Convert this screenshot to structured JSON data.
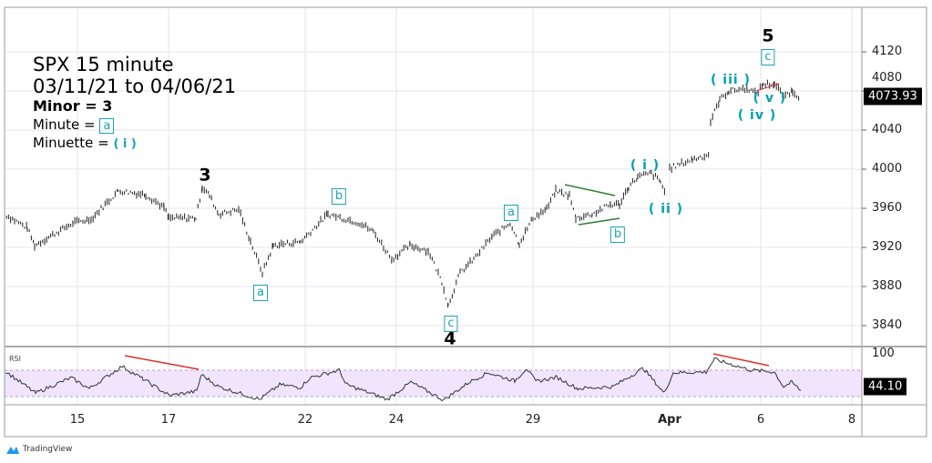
{
  "header": {
    "title": "SPX 15 minute",
    "range": "03/11/21 to 04/06/21",
    "minor": "Minor = 3",
    "minute_label": "Minute =",
    "minute_box": "a",
    "minuette_label": "Minuette   =",
    "minuette_value": "( i )"
  },
  "brand": "TradingView",
  "rsi_label": "RSI",
  "colors": {
    "teal": "#1aa3b3",
    "red": "#d9342b",
    "green": "#2e7d32",
    "band": "#f1e4fd"
  },
  "chart_data": {
    "type": "line",
    "title": "SPX 15 minute",
    "x_unit": "trading session index (0 = Mar 12)",
    "x_ticks": [
      {
        "label": "15",
        "x": 1
      },
      {
        "label": "17",
        "x": 3
      },
      {
        "label": "22",
        "x": 6
      },
      {
        "label": "24",
        "x": 8
      },
      {
        "label": "29",
        "x": 11
      },
      {
        "label": "Apr",
        "x": 14
      },
      {
        "label": "6",
        "x": 16
      },
      {
        "label": "8",
        "x": 18
      }
    ],
    "y_ticks": [
      "4120",
      "4080",
      "4040",
      "4000",
      "3960",
      "3920",
      "3880",
      "3840"
    ],
    "ylim": [
      3815,
      4165
    ],
    "last_price": "4073.93",
    "price": [
      [
        -0.6,
        3954
      ],
      [
        -0.1,
        3940
      ],
      [
        0.06,
        3922
      ],
      [
        0.9,
        3945
      ],
      [
        1.3,
        3949
      ],
      [
        1.9,
        3978
      ],
      [
        2.5,
        3974
      ],
      [
        2.9,
        3961
      ],
      [
        3.0,
        3950
      ],
      [
        3.6,
        3950
      ],
      [
        3.74,
        3982
      ],
      [
        3.9,
        3973
      ],
      [
        4.1,
        3954
      ],
      [
        4.54,
        3959
      ],
      [
        4.8,
        3926
      ],
      [
        5.06,
        3894
      ],
      [
        5.3,
        3922
      ],
      [
        5.9,
        3926
      ],
      [
        6.5,
        3954
      ],
      [
        7.2,
        3945
      ],
      [
        7.5,
        3936
      ],
      [
        7.9,
        3908
      ],
      [
        8.3,
        3922
      ],
      [
        8.7,
        3917
      ],
      [
        9.0,
        3885
      ],
      [
        9.14,
        3861
      ],
      [
        9.4,
        3894
      ],
      [
        9.7,
        3908
      ],
      [
        10.1,
        3931
      ],
      [
        10.5,
        3945
      ],
      [
        10.7,
        3924
      ],
      [
        11.0,
        3950
      ],
      [
        11.3,
        3959
      ],
      [
        11.5,
        3978
      ],
      [
        11.8,
        3973
      ],
      [
        11.94,
        3950
      ],
      [
        12.3,
        3954
      ],
      [
        12.7,
        3964
      ],
      [
        12.9,
        3964
      ],
      [
        13.1,
        3982
      ],
      [
        13.3,
        3992
      ],
      [
        13.6,
        3996
      ],
      [
        13.8,
        3987
      ],
      [
        13.9,
        3976
      ],
      [
        14.0,
        4001
      ],
      [
        14.5,
        4010
      ],
      [
        14.86,
        4015
      ],
      [
        14.9,
        4049
      ],
      [
        15.1,
        4071
      ],
      [
        15.3,
        4080
      ],
      [
        15.7,
        4083
      ],
      [
        15.9,
        4077
      ],
      [
        16.06,
        4087
      ],
      [
        16.3,
        4087
      ],
      [
        16.5,
        4075
      ],
      [
        16.7,
        4080
      ],
      [
        16.86,
        4073
      ]
    ],
    "rsi": {
      "last": "44.10",
      "ticks": [
        "100"
      ],
      "band": [
        30,
        70
      ],
      "values": [
        [
          -0.58,
          71
        ],
        [
          0.08,
          37
        ],
        [
          0.86,
          61
        ],
        [
          1.26,
          44
        ],
        [
          1.98,
          79
        ],
        [
          2.44,
          59
        ],
        [
          3.02,
          33
        ],
        [
          3.62,
          40
        ],
        [
          3.72,
          66
        ],
        [
          4.1,
          47
        ],
        [
          5.0,
          27
        ],
        [
          5.44,
          50
        ],
        [
          5.9,
          46
        ],
        [
          6.1,
          61
        ],
        [
          6.76,
          73
        ],
        [
          6.88,
          51
        ],
        [
          7.8,
          27
        ],
        [
          8.32,
          54
        ],
        [
          9.04,
          26
        ],
        [
          9.62,
          55
        ],
        [
          10.02,
          69
        ],
        [
          10.6,
          56
        ],
        [
          10.86,
          76
        ],
        [
          11.06,
          55
        ],
        [
          11.52,
          62
        ],
        [
          11.98,
          44
        ],
        [
          12.76,
          47
        ],
        [
          13.42,
          76
        ],
        [
          13.88,
          37
        ],
        [
          14.08,
          69
        ],
        [
          14.8,
          70
        ],
        [
          14.98,
          90
        ],
        [
          15.78,
          73
        ],
        [
          16.3,
          70
        ],
        [
          16.5,
          47
        ],
        [
          16.68,
          54
        ],
        [
          16.88,
          41
        ]
      ]
    },
    "annotations": {
      "waves": {
        "w3": "3",
        "w4": "4",
        "w5": "5"
      },
      "boxes": {
        "a1": "a",
        "b1": "b",
        "c1": "c",
        "a2": "a",
        "b2": "b",
        "c2": "c"
      },
      "minuette": {
        "i": "( i )",
        "ii": "( ii )",
        "iii": "( iii )",
        "iv": "( iv )",
        "v": "( v )"
      }
    }
  }
}
